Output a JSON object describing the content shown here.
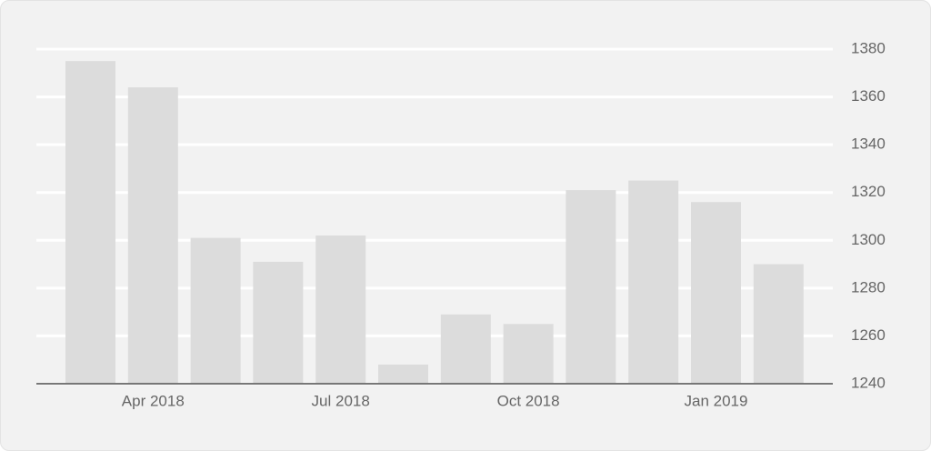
{
  "chart_data": {
    "type": "bar",
    "categories": [
      null,
      "Apr 2018",
      null,
      null,
      "Jul 2018",
      null,
      null,
      "Oct 2018",
      null,
      null,
      "Jan 2019",
      null
    ],
    "values": [
      1375,
      1364,
      1301,
      1291,
      1302,
      1248,
      1269,
      1265,
      1321,
      1325,
      1316,
      1290
    ],
    "color": "#dcdcdc",
    "ylim": [
      1240,
      1380
    ],
    "yticks": [
      1240,
      1260,
      1280,
      1300,
      1320,
      1340,
      1360,
      1380
    ],
    "grid": true
  }
}
